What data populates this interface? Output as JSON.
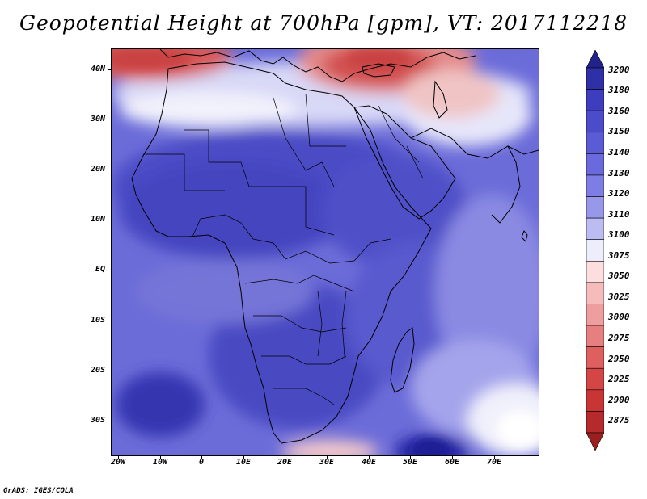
{
  "title": "Geopotential Height at 700hPa [gpm], VT: 2017112218",
  "credit": "GrADS: IGES/COLA",
  "lat_axis": [
    "40N",
    "30N",
    "20N",
    "10N",
    "EQ",
    "10S",
    "20S",
    "30S"
  ],
  "lon_axis": [
    "20W",
    "10W",
    "0",
    "10E",
    "20E",
    "30E",
    "40E",
    "50E",
    "60E",
    "70E"
  ],
  "colorbar": {
    "levels": [
      "3200",
      "3180",
      "3160",
      "3150",
      "3140",
      "3130",
      "3120",
      "3110",
      "3100",
      "3075",
      "3050",
      "3025",
      "3000",
      "2975",
      "2950",
      "2925",
      "2900",
      "2875"
    ],
    "colors": [
      "#22228c",
      "#2f2fa6",
      "#3d3dbd",
      "#4c4ccb",
      "#5b5bd6",
      "#6a6add",
      "#7d7de3",
      "#9898ea",
      "#bcbcf3",
      "#ededfb",
      "#fcdede",
      "#f6bcbc",
      "#ee9e9e",
      "#e67f7f",
      "#dd5f5f",
      "#d44646",
      "#c93535",
      "#b52a2a",
      "#9c1f1f"
    ]
  },
  "map": {
    "extent": {
      "lon_min": -22,
      "lon_max": 80,
      "lat_min": -37,
      "lat_max": 45
    },
    "palette": {
      "deep_blue": "#2c2ca8",
      "mid_blue": "#4e4ec9",
      "blue": "#6c6cd9",
      "light_blue": "#9d9deb",
      "pale_blue": "#cfcff6",
      "white": "#f7f7fd",
      "pale_red": "#f4c6c6",
      "red": "#e07070",
      "deep_red": "#c73a3a",
      "coast": "#000000"
    }
  }
}
